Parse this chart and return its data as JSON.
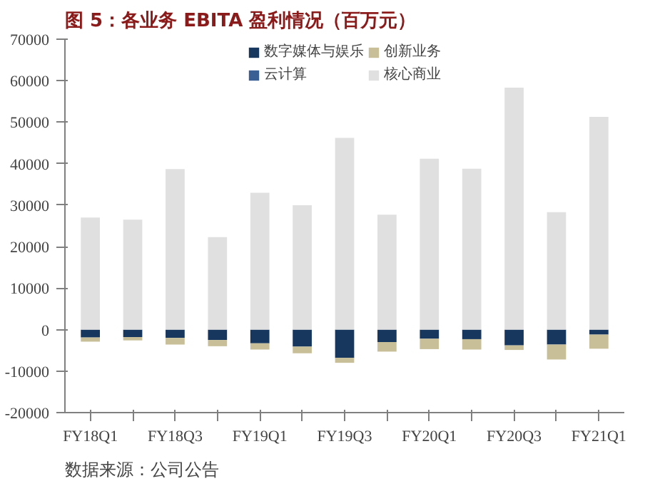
{
  "chart_data": {
    "type": "bar",
    "stacked": true,
    "title": "图 5：各业务 EBITA 盈利情况（百万元）",
    "categories": [
      "FY18Q1",
      null,
      "FY18Q3",
      null,
      "FY19Q1",
      null,
      "FY19Q3",
      null,
      "FY20Q1",
      null,
      "FY20Q3",
      null,
      "FY21Q1"
    ],
    "series": [
      {
        "name": "数字媒体与娱乐",
        "color": "#17375e",
        "values": [
          -1900,
          -1800,
          -2000,
          -2500,
          -3300,
          -4100,
          -6800,
          -3000,
          -2200,
          -2300,
          -3800,
          -3600,
          -1200
        ]
      },
      {
        "name": "云计算",
        "color": "#3a5f95",
        "values": [
          null,
          null,
          null,
          null,
          null,
          null,
          null,
          null,
          null,
          null,
          null,
          null,
          null
        ]
      },
      {
        "name": "创新业务",
        "color": "#c8bf98",
        "values": [
          -1000,
          -800,
          -1600,
          -1500,
          -1500,
          -1600,
          -1200,
          -2300,
          -2500,
          -2500,
          -1100,
          -3600,
          -3400
        ]
      },
      {
        "name": "核心商业",
        "color": "#e0e0e0",
        "values": [
          27000,
          26500,
          38700,
          22300,
          33000,
          30000,
          46200,
          27700,
          41200,
          38800,
          58300,
          28300,
          51300
        ]
      }
    ],
    "ylim": [
      -20000,
      70000
    ],
    "yticks": [
      -20000,
      -10000,
      0,
      10000,
      20000,
      30000,
      40000,
      50000,
      60000,
      70000
    ],
    "grid": false,
    "legend": "top",
    "annotations": [
      "数据来源：公司公告"
    ]
  }
}
